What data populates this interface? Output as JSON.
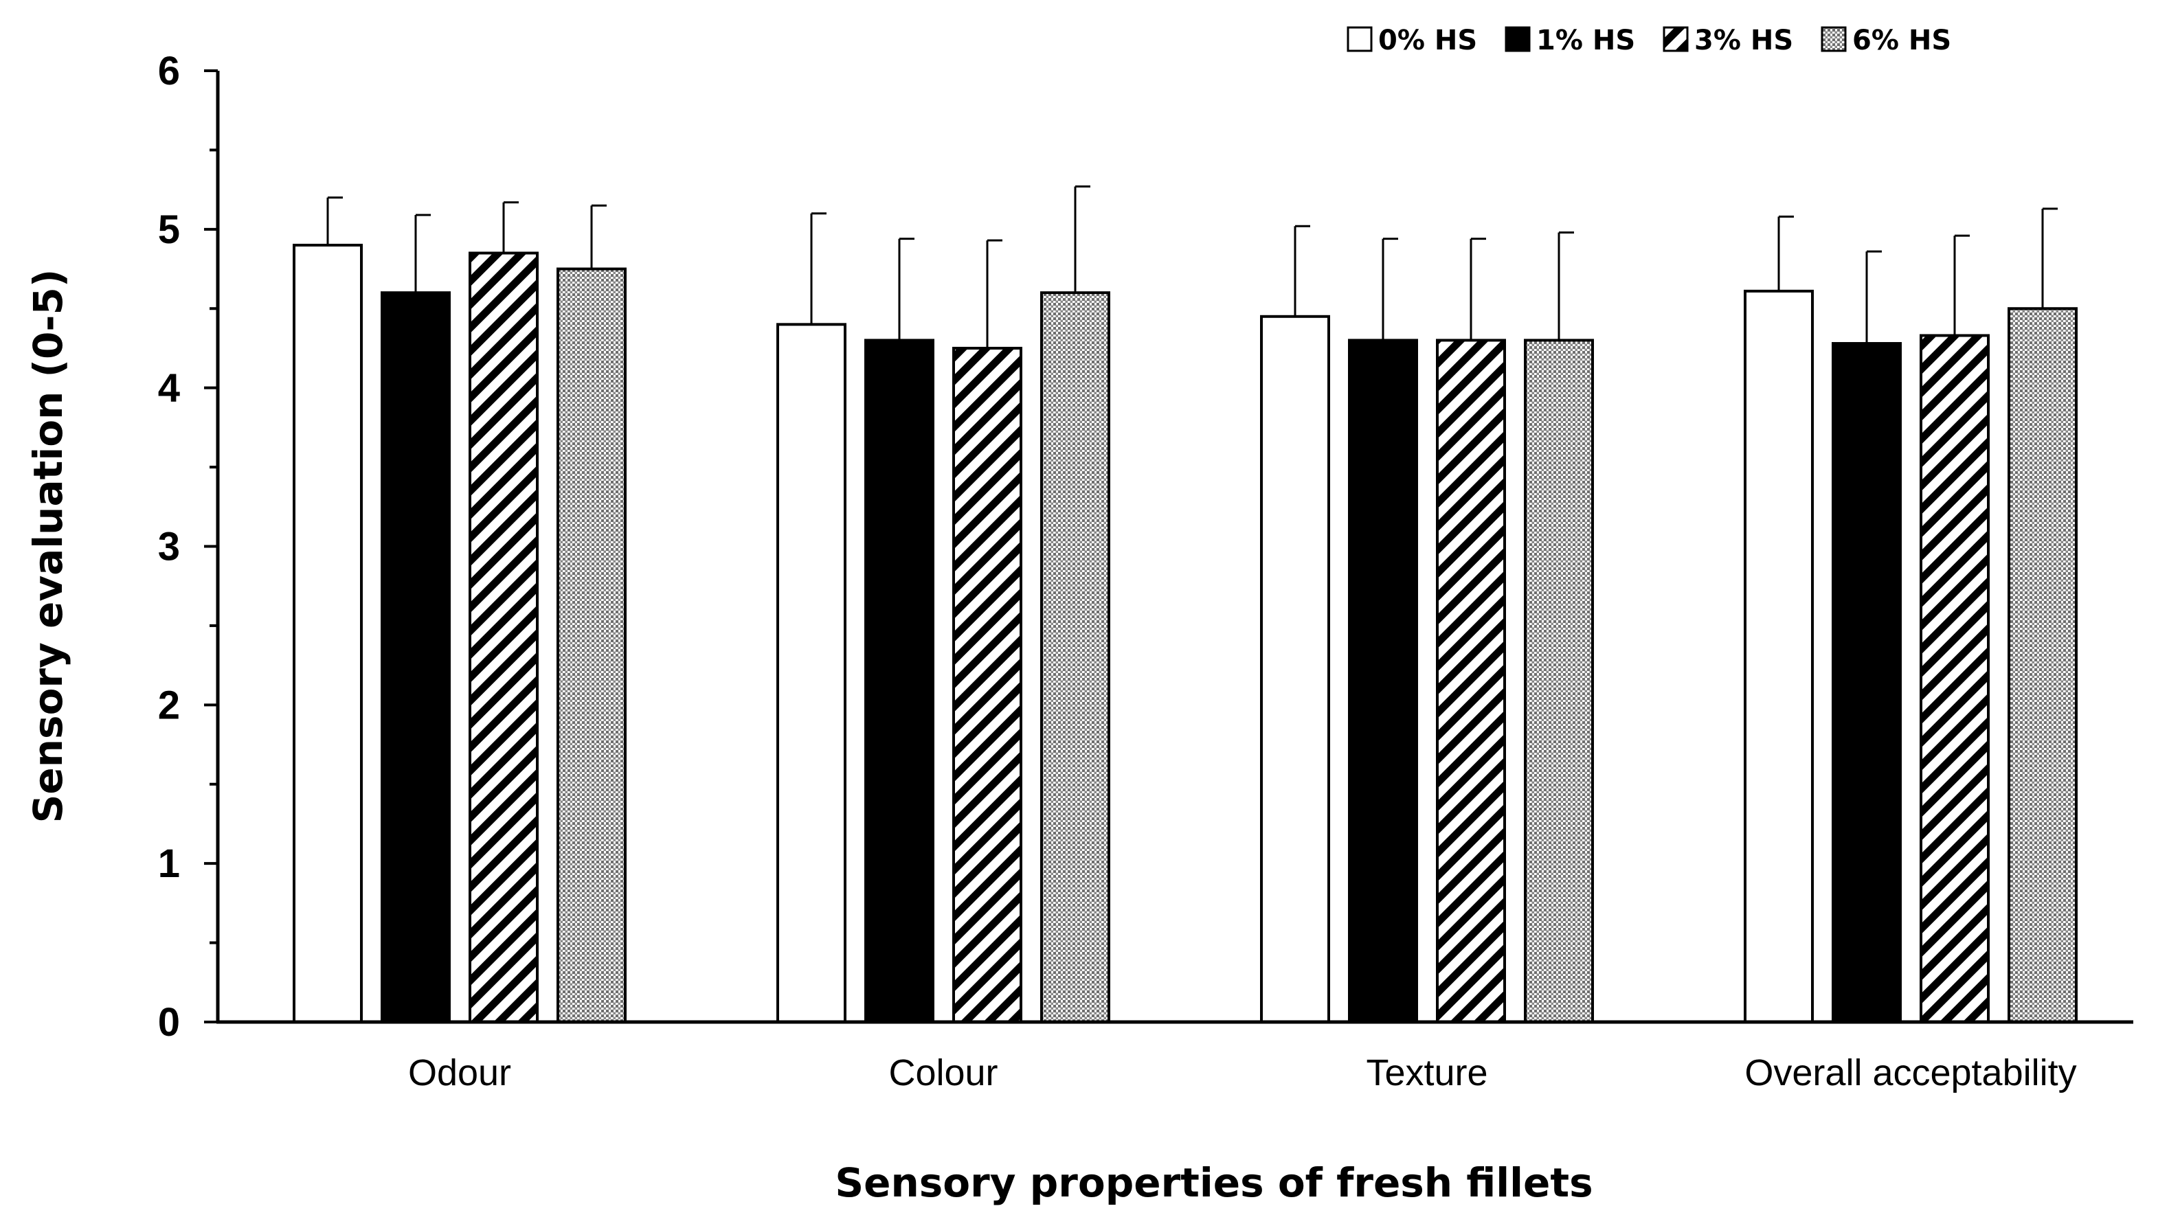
{
  "chart_data": {
    "type": "bar",
    "title": "",
    "xlabel": "Sensory properties of fresh fillets",
    "ylabel": "Sensory evaluation (0-5)",
    "ylim": [
      0,
      6
    ],
    "yticks": [
      "0",
      "1",
      "2",
      "3",
      "4",
      "5",
      "6"
    ],
    "grid": false,
    "legend_position": "top-right",
    "categories": [
      "Odour",
      "Colour",
      "Texture",
      "Overall acceptability"
    ],
    "series": [
      {
        "name": "0% HS",
        "fill": "white",
        "values": [
          4.9,
          4.4,
          4.45,
          4.61
        ],
        "errors": [
          0.3,
          0.7,
          0.57,
          0.47
        ]
      },
      {
        "name": "1% HS",
        "fill": "black",
        "values": [
          4.6,
          4.3,
          4.3,
          4.28
        ],
        "errors": [
          0.49,
          0.64,
          0.64,
          0.58
        ]
      },
      {
        "name": "3% HS",
        "fill": "diagonal-stripes",
        "values": [
          4.85,
          4.25,
          4.3,
          4.33
        ],
        "errors": [
          0.32,
          0.68,
          0.64,
          0.63
        ]
      },
      {
        "name": "6% HS",
        "fill": "dotted-grey",
        "values": [
          4.75,
          4.6,
          4.3,
          4.5
        ],
        "errors": [
          0.4,
          0.67,
          0.68,
          0.63
        ]
      }
    ]
  },
  "colors": {
    "axis": "#000000",
    "bar_outline": "#000000",
    "dot_fill": "#7a7a7a"
  }
}
